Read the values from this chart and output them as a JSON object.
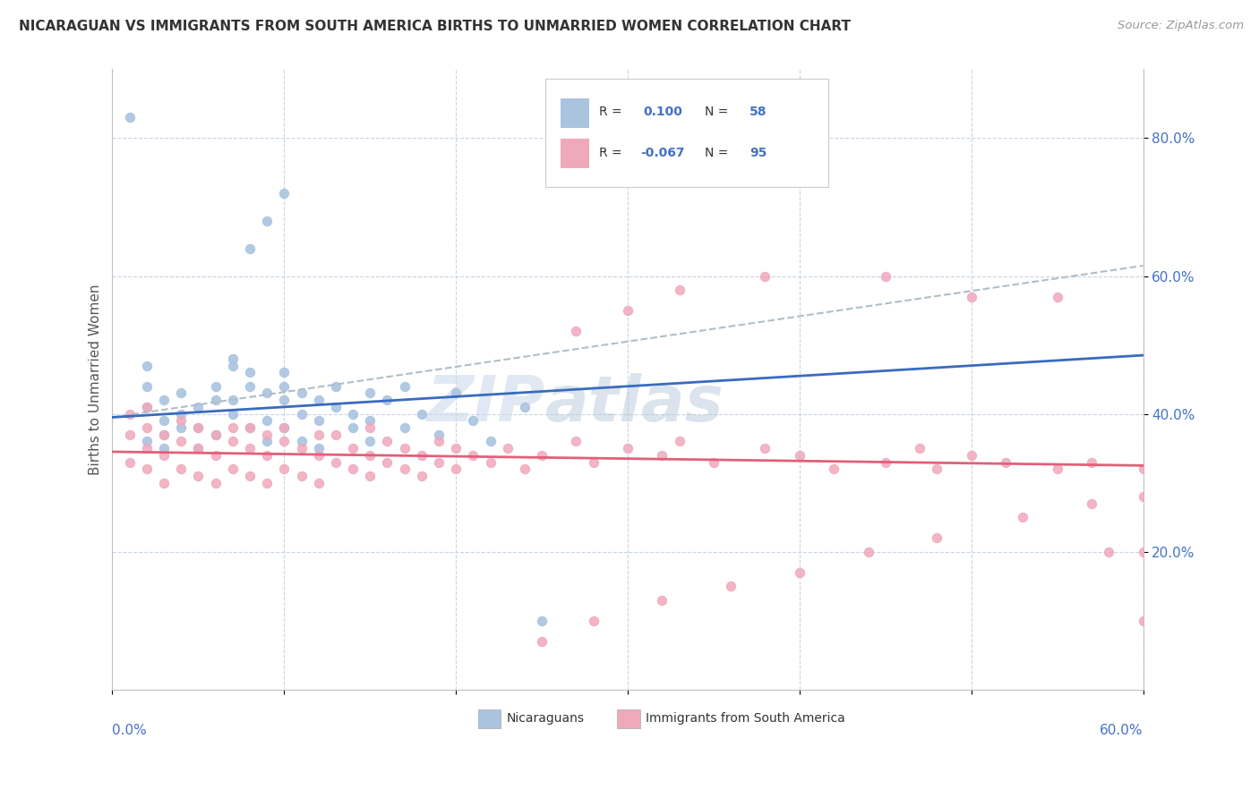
{
  "title": "NICARAGUAN VS IMMIGRANTS FROM SOUTH AMERICA BIRTHS TO UNMARRIED WOMEN CORRELATION CHART",
  "source": "Source: ZipAtlas.com",
  "ylabel": "Births to Unmarried Women",
  "y_tick_labels": [
    "20.0%",
    "40.0%",
    "60.0%",
    "80.0%"
  ],
  "y_tick_positions": [
    0.2,
    0.4,
    0.6,
    0.8
  ],
  "x_range": [
    0.0,
    0.6
  ],
  "y_range": [
    0.0,
    0.9
  ],
  "r_nicaraguan": 0.1,
  "n_nicaraguan": 58,
  "r_south_america": -0.067,
  "n_south_america": 95,
  "color_nicaraguan": "#aac4e0",
  "color_south_america": "#f0a8bb",
  "line_color_nicaraguan": "#3a6bbf",
  "line_color_south_america": "#e0607a",
  "line_color_dashed": "#b0bec5",
  "legend_text_color": "#4472c4",
  "watermark": "ZIPatlas",
  "nic_line": [
    0.395,
    0.485
  ],
  "sa_line": [
    0.345,
    0.325
  ],
  "dash_line": [
    0.395,
    0.615
  ],
  "scatter_nicaraguan_x": [
    0.01,
    0.02,
    0.02,
    0.02,
    0.02,
    0.03,
    0.03,
    0.03,
    0.03,
    0.04,
    0.04,
    0.04,
    0.05,
    0.05,
    0.05,
    0.06,
    0.06,
    0.06,
    0.07,
    0.07,
    0.07,
    0.07,
    0.08,
    0.08,
    0.08,
    0.09,
    0.09,
    0.09,
    0.1,
    0.1,
    0.1,
    0.1,
    0.11,
    0.11,
    0.11,
    0.12,
    0.12,
    0.12,
    0.13,
    0.13,
    0.14,
    0.14,
    0.15,
    0.15,
    0.15,
    0.16,
    0.17,
    0.17,
    0.18,
    0.19,
    0.2,
    0.21,
    0.22,
    0.24,
    0.25,
    0.08,
    0.09,
    0.1
  ],
  "scatter_nicaraguan_y": [
    0.83,
    0.41,
    0.44,
    0.47,
    0.36,
    0.37,
    0.39,
    0.42,
    0.35,
    0.38,
    0.4,
    0.43,
    0.38,
    0.41,
    0.35,
    0.42,
    0.44,
    0.37,
    0.47,
    0.48,
    0.42,
    0.4,
    0.44,
    0.46,
    0.38,
    0.43,
    0.39,
    0.36,
    0.42,
    0.44,
    0.38,
    0.46,
    0.4,
    0.43,
    0.36,
    0.39,
    0.42,
    0.35,
    0.41,
    0.44,
    0.38,
    0.4,
    0.43,
    0.36,
    0.39,
    0.42,
    0.38,
    0.44,
    0.4,
    0.37,
    0.43,
    0.39,
    0.36,
    0.41,
    0.1,
    0.64,
    0.68,
    0.72
  ],
  "scatter_south_america_x": [
    0.01,
    0.01,
    0.01,
    0.02,
    0.02,
    0.02,
    0.02,
    0.03,
    0.03,
    0.03,
    0.04,
    0.04,
    0.04,
    0.05,
    0.05,
    0.05,
    0.06,
    0.06,
    0.06,
    0.07,
    0.07,
    0.07,
    0.08,
    0.08,
    0.08,
    0.09,
    0.09,
    0.09,
    0.1,
    0.1,
    0.1,
    0.11,
    0.11,
    0.12,
    0.12,
    0.12,
    0.13,
    0.13,
    0.14,
    0.14,
    0.15,
    0.15,
    0.15,
    0.16,
    0.16,
    0.17,
    0.17,
    0.18,
    0.18,
    0.19,
    0.19,
    0.2,
    0.2,
    0.21,
    0.22,
    0.23,
    0.24,
    0.25,
    0.27,
    0.28,
    0.3,
    0.32,
    0.33,
    0.35,
    0.38,
    0.4,
    0.42,
    0.45,
    0.47,
    0.48,
    0.5,
    0.52,
    0.55,
    0.57,
    0.6,
    0.27,
    0.3,
    0.33,
    0.38,
    0.45,
    0.5,
    0.55,
    0.58,
    0.25,
    0.28,
    0.32,
    0.36,
    0.4,
    0.44,
    0.48,
    0.53,
    0.57,
    0.6,
    0.6,
    0.6
  ],
  "scatter_south_america_y": [
    0.37,
    0.33,
    0.4,
    0.35,
    0.38,
    0.32,
    0.41,
    0.34,
    0.37,
    0.3,
    0.36,
    0.39,
    0.32,
    0.35,
    0.38,
    0.31,
    0.34,
    0.37,
    0.3,
    0.36,
    0.38,
    0.32,
    0.35,
    0.38,
    0.31,
    0.34,
    0.37,
    0.3,
    0.36,
    0.38,
    0.32,
    0.35,
    0.31,
    0.34,
    0.37,
    0.3,
    0.33,
    0.37,
    0.32,
    0.35,
    0.34,
    0.38,
    0.31,
    0.33,
    0.36,
    0.32,
    0.35,
    0.31,
    0.34,
    0.33,
    0.36,
    0.32,
    0.35,
    0.34,
    0.33,
    0.35,
    0.32,
    0.34,
    0.36,
    0.33,
    0.35,
    0.34,
    0.36,
    0.33,
    0.35,
    0.34,
    0.32,
    0.33,
    0.35,
    0.32,
    0.34,
    0.33,
    0.32,
    0.33,
    0.32,
    0.52,
    0.55,
    0.58,
    0.6,
    0.6,
    0.57,
    0.57,
    0.2,
    0.07,
    0.1,
    0.13,
    0.15,
    0.17,
    0.2,
    0.22,
    0.25,
    0.27,
    0.28,
    0.2,
    0.1
  ]
}
